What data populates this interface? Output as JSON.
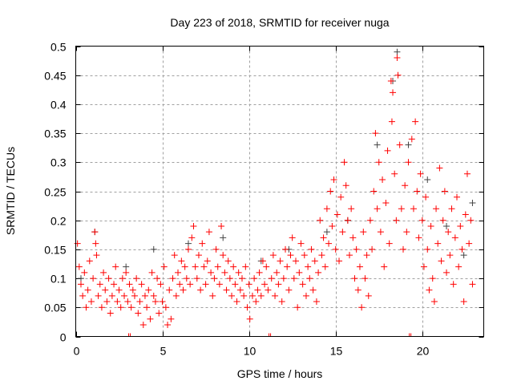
{
  "chart_data": {
    "type": "scatter",
    "title": "Day 223 of 2018, SRMTID for receiver nuga",
    "xlabel": "GPS time / hours",
    "ylabel": "SRMTID / TECUs",
    "xlim": [
      0,
      23.55
    ],
    "ylim": [
      0,
      0.5
    ],
    "xticks": [
      0,
      5,
      10,
      15,
      20
    ],
    "xtick_labels": [
      "0",
      "5",
      "10",
      "15",
      "20"
    ],
    "yticks": [
      0,
      0.05,
      0.1,
      0.15,
      0.2,
      0.25,
      0.3,
      0.35,
      0.4,
      0.45,
      0.5
    ],
    "ytick_labels": [
      "0",
      "0.05",
      "0.1",
      "0.15",
      "0.2",
      "0.25",
      "0.3",
      "0.35",
      "0.4",
      "0.45",
      "0.5"
    ],
    "grid": true,
    "legend": "none",
    "series": [
      {
        "name": "primary",
        "color": "#ff0000",
        "marker": "plus",
        "points": [
          [
            0.1,
            0.16
          ],
          [
            0.2,
            0.12
          ],
          [
            0.3,
            0.09
          ],
          [
            0.4,
            0.07
          ],
          [
            0.5,
            0.11
          ],
          [
            0.6,
            0.05
          ],
          [
            0.7,
            0.08
          ],
          [
            0.8,
            0.13
          ],
          [
            0.9,
            0.06
          ],
          [
            1.0,
            0.1
          ],
          [
            1.1,
            0.18
          ],
          [
            1.15,
            0.16
          ],
          [
            1.2,
            0.14
          ],
          [
            1.3,
            0.07
          ],
          [
            1.4,
            0.09
          ],
          [
            1.5,
            0.05
          ],
          [
            1.6,
            0.11
          ],
          [
            1.7,
            0.08
          ],
          [
            1.8,
            0.06
          ],
          [
            1.9,
            0.1
          ],
          [
            2.0,
            0.04
          ],
          [
            2.1,
            0.07
          ],
          [
            2.2,
            0.09
          ],
          [
            2.3,
            0.12
          ],
          [
            2.4,
            0.06
          ],
          [
            2.5,
            0.08
          ],
          [
            2.6,
            0.05
          ],
          [
            2.7,
            0.1
          ],
          [
            2.8,
            0.07
          ],
          [
            2.9,
            0.11
          ],
          [
            3.0,
            0.06
          ],
          [
            3.1,
            0.0
          ],
          [
            3.1,
            0.09
          ],
          [
            3.2,
            0.05
          ],
          [
            3.3,
            0.08
          ],
          [
            3.4,
            0.07
          ],
          [
            3.5,
            0.1
          ],
          [
            3.6,
            0.04
          ],
          [
            3.7,
            0.06
          ],
          [
            3.8,
            0.09
          ],
          [
            3.9,
            0.02
          ],
          [
            4.0,
            0.07
          ],
          [
            4.1,
            0.05
          ],
          [
            4.2,
            0.08
          ],
          [
            4.3,
            0.03
          ],
          [
            4.4,
            0.11
          ],
          [
            4.5,
            0.07
          ],
          [
            4.6,
            0.06
          ],
          [
            4.7,
            0.1
          ],
          [
            4.8,
            0.04
          ],
          [
            4.9,
            0.09
          ],
          [
            5.0,
            0.06
          ],
          [
            5.1,
            0.12
          ],
          [
            5.2,
            0.05
          ],
          [
            5.3,
            0.02
          ],
          [
            5.4,
            0.08
          ],
          [
            5.5,
            0.03
          ],
          [
            5.6,
            0.1
          ],
          [
            5.7,
            0.14
          ],
          [
            5.8,
            0.07
          ],
          [
            5.9,
            0.11
          ],
          [
            6.0,
            0.09
          ],
          [
            6.1,
            0.13
          ],
          [
            6.2,
            0.08
          ],
          [
            6.3,
            0.12
          ],
          [
            6.4,
            0.1
          ],
          [
            6.5,
            0.15
          ],
          [
            6.6,
            0.09
          ],
          [
            6.7,
            0.17
          ],
          [
            6.8,
            0.19
          ],
          [
            6.9,
            0.12
          ],
          [
            7.0,
            0.1
          ],
          [
            7.1,
            0.14
          ],
          [
            7.2,
            0.08
          ],
          [
            7.3,
            0.16
          ],
          [
            7.4,
            0.12
          ],
          [
            7.5,
            0.09
          ],
          [
            7.6,
            0.13
          ],
          [
            7.7,
            0.18
          ],
          [
            7.8,
            0.11
          ],
          [
            7.9,
            0.07
          ],
          [
            8.0,
            0.1
          ],
          [
            8.1,
            0.15
          ],
          [
            8.2,
            0.12
          ],
          [
            8.3,
            0.09
          ],
          [
            8.4,
            0.19
          ],
          [
            8.5,
            0.14
          ],
          [
            8.6,
            0.11
          ],
          [
            8.7,
            0.08
          ],
          [
            8.8,
            0.13
          ],
          [
            8.9,
            0.1
          ],
          [
            9.0,
            0.07
          ],
          [
            9.1,
            0.12
          ],
          [
            9.2,
            0.09
          ],
          [
            9.3,
            0.06
          ],
          [
            9.4,
            0.11
          ],
          [
            9.5,
            0.08
          ],
          [
            9.6,
            0.1
          ],
          [
            9.7,
            0.07
          ],
          [
            9.8,
            0.12
          ],
          [
            9.9,
            0.05
          ],
          [
            10.0,
            0.09
          ],
          [
            10.05,
            0.03
          ],
          [
            10.2,
            0.07
          ],
          [
            10.3,
            0.1
          ],
          [
            10.4,
            0.06
          ],
          [
            10.5,
            0.08
          ],
          [
            10.6,
            0.11
          ],
          [
            10.7,
            0.07
          ],
          [
            10.8,
            0.13
          ],
          [
            10.9,
            0.09
          ],
          [
            11.0,
            0.12
          ],
          [
            11.1,
            0.08
          ],
          [
            11.2,
            0.0
          ],
          [
            11.3,
            0.1
          ],
          [
            11.4,
            0.14
          ],
          [
            11.5,
            0.07
          ],
          [
            11.6,
            0.11
          ],
          [
            11.7,
            0.09
          ],
          [
            11.8,
            0.13
          ],
          [
            11.9,
            0.06
          ],
          [
            12.0,
            0.1
          ],
          [
            12.1,
            0.15
          ],
          [
            12.2,
            0.12
          ],
          [
            12.3,
            0.08
          ],
          [
            12.4,
            0.14
          ],
          [
            12.5,
            0.17
          ],
          [
            12.6,
            0.1
          ],
          [
            12.7,
            0.13
          ],
          [
            12.8,
            0.05
          ],
          [
            12.9,
            0.11
          ],
          [
            13.0,
            0.16
          ],
          [
            13.1,
            0.09
          ],
          [
            13.2,
            0.14
          ],
          [
            13.3,
            0.07
          ],
          [
            13.4,
            0.12
          ],
          [
            13.5,
            0.1
          ],
          [
            13.6,
            0.15
          ],
          [
            13.7,
            0.08
          ],
          [
            13.8,
            0.13
          ],
          [
            13.9,
            0.06
          ],
          [
            14.0,
            0.11
          ],
          [
            14.1,
            0.2
          ],
          [
            14.2,
            0.14
          ],
          [
            14.3,
            0.17
          ],
          [
            14.4,
            0.12
          ],
          [
            14.5,
            0.22
          ],
          [
            14.6,
            0.16
          ],
          [
            14.7,
            0.25
          ],
          [
            14.8,
            0.19
          ],
          [
            14.9,
            0.27
          ],
          [
            15.0,
            0.15
          ],
          [
            15.1,
            0.21
          ],
          [
            15.2,
            0.13
          ],
          [
            15.3,
            0.24
          ],
          [
            15.4,
            0.18
          ],
          [
            15.5,
            0.3
          ],
          [
            15.6,
            0.26
          ],
          [
            15.7,
            0.2
          ],
          [
            15.8,
            0.14
          ],
          [
            15.9,
            0.22
          ],
          [
            16.0,
            0.17
          ],
          [
            16.1,
            0.1
          ],
          [
            16.2,
            0.15
          ],
          [
            16.3,
            0.08
          ],
          [
            16.4,
            0.12
          ],
          [
            16.5,
            0.05
          ],
          [
            16.6,
            0.18
          ],
          [
            16.7,
            0.1
          ],
          [
            16.8,
            0.14
          ],
          [
            16.9,
            0.07
          ],
          [
            17.0,
            0.2
          ],
          [
            17.1,
            0.15
          ],
          [
            17.2,
            0.25
          ],
          [
            17.3,
            0.35
          ],
          [
            17.4,
            0.22
          ],
          [
            17.5,
            0.3
          ],
          [
            17.6,
            0.18
          ],
          [
            17.7,
            0.27
          ],
          [
            17.8,
            0.12
          ],
          [
            17.9,
            0.23
          ],
          [
            18.0,
            0.32
          ],
          [
            18.1,
            0.16
          ],
          [
            18.2,
            0.44
          ],
          [
            18.25,
            0.37
          ],
          [
            18.3,
            0.42
          ],
          [
            18.4,
            0.28
          ],
          [
            18.5,
            0.2
          ],
          [
            18.55,
            0.48
          ],
          [
            18.6,
            0.45
          ],
          [
            18.7,
            0.33
          ],
          [
            18.8,
            0.22
          ],
          [
            18.9,
            0.15
          ],
          [
            19.0,
            0.26
          ],
          [
            19.1,
            0.18
          ],
          [
            19.2,
            0.3
          ],
          [
            19.3,
            0.0
          ],
          [
            19.4,
            0.34
          ],
          [
            19.5,
            0.22
          ],
          [
            19.6,
            0.37
          ],
          [
            19.7,
            0.25
          ],
          [
            19.8,
            0.17
          ],
          [
            19.9,
            0.28
          ],
          [
            20.0,
            0.2
          ],
          [
            20.1,
            0.12
          ],
          [
            20.2,
            0.24
          ],
          [
            20.3,
            0.15
          ],
          [
            20.4,
            0.08
          ],
          [
            20.5,
            0.19
          ],
          [
            20.6,
            0.1
          ],
          [
            20.7,
            0.06
          ],
          [
            20.8,
            0.22
          ],
          [
            20.9,
            0.16
          ],
          [
            21.0,
            0.29
          ],
          [
            21.1,
            0.13
          ],
          [
            21.2,
            0.2
          ],
          [
            21.3,
            0.25
          ],
          [
            21.4,
            0.11
          ],
          [
            21.5,
            0.18
          ],
          [
            21.6,
            0.14
          ],
          [
            21.7,
            0.22
          ],
          [
            21.8,
            0.09
          ],
          [
            21.9,
            0.17
          ],
          [
            22.0,
            0.24
          ],
          [
            22.1,
            0.12
          ],
          [
            22.2,
            0.19
          ],
          [
            22.3,
            0.15
          ],
          [
            22.4,
            0.06
          ],
          [
            22.5,
            0.21
          ],
          [
            22.6,
            0.28
          ],
          [
            22.7,
            0.16
          ],
          [
            22.8,
            0.2
          ],
          [
            22.9,
            0.09
          ]
        ]
      },
      {
        "name": "secondary",
        "color": "#444444",
        "marker": "plus",
        "points": [
          [
            0.3,
            0.1
          ],
          [
            1.1,
            0.18
          ],
          [
            2.9,
            0.12
          ],
          [
            4.5,
            0.15
          ],
          [
            6.5,
            0.16
          ],
          [
            8.5,
            0.17
          ],
          [
            10.7,
            0.13
          ],
          [
            12.3,
            0.15
          ],
          [
            14.5,
            0.18
          ],
          [
            15.7,
            0.2
          ],
          [
            17.4,
            0.33
          ],
          [
            18.55,
            0.49
          ],
          [
            18.3,
            0.44
          ],
          [
            19.2,
            0.33
          ],
          [
            20.3,
            0.27
          ],
          [
            21.4,
            0.19
          ],
          [
            22.4,
            0.14
          ],
          [
            22.9,
            0.23
          ]
        ]
      }
    ]
  }
}
